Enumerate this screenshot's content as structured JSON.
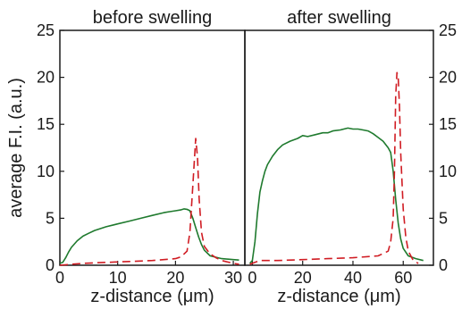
{
  "chart_data": [
    {
      "type": "line",
      "title": "before swelling",
      "xlabel": "z-distance (μm)",
      "ylabel": "average F.I. (a.u.)",
      "xlim": [
        0,
        32
      ],
      "ylim": [
        0,
        25
      ],
      "xticks": [
        0,
        10,
        20,
        30
      ],
      "yticks": [
        0,
        5,
        10,
        15,
        20,
        25
      ],
      "y_axis_side": "left",
      "series": [
        {
          "style": "solid",
          "color": "#1f7a2e",
          "x": [
            0,
            0.5,
            1,
            1.5,
            2,
            3,
            4,
            5,
            6,
            8,
            10,
            12,
            14,
            16,
            18,
            19,
            20,
            21,
            21.5,
            22,
            22.5,
            23,
            23.5,
            24,
            24.5,
            25,
            26,
            28,
            30,
            31
          ],
          "y": [
            0.2,
            0.3,
            0.8,
            1.4,
            1.9,
            2.6,
            3.1,
            3.4,
            3.7,
            4.1,
            4.4,
            4.7,
            5.0,
            5.3,
            5.6,
            5.7,
            5.8,
            5.9,
            6.0,
            5.95,
            5.8,
            5.0,
            4.0,
            3.0,
            2.2,
            1.6,
            1.0,
            0.7,
            0.6,
            0.55
          ]
        },
        {
          "style": "dashed",
          "color": "#d01c23",
          "x": [
            0,
            2,
            4,
            8,
            12,
            16,
            20,
            21,
            22,
            22.5,
            23,
            23.5,
            23.8,
            24.1,
            24.5,
            25,
            26,
            27,
            28,
            30,
            31
          ],
          "y": [
            0.0,
            0.1,
            0.2,
            0.3,
            0.4,
            0.5,
            0.7,
            0.9,
            1.5,
            3.5,
            8.5,
            13.5,
            11.5,
            7.0,
            3.5,
            2.0,
            1.2,
            0.8,
            0.5,
            0.2,
            0.1
          ]
        }
      ]
    },
    {
      "type": "line",
      "title": "after swelling",
      "xlabel": "z-distance (μm)",
      "ylabel": "",
      "xlim": [
        -3,
        72
      ],
      "ylim": [
        0,
        25
      ],
      "xticks": [
        0,
        20,
        40,
        60
      ],
      "yticks": [
        0,
        5,
        10,
        15,
        20,
        25
      ],
      "y_axis_side": "right",
      "series": [
        {
          "style": "solid",
          "color": "#1f7a2e",
          "x": [
            -1,
            0,
            1,
            2,
            3,
            4,
            5,
            6,
            8,
            10,
            12,
            15,
            18,
            20,
            22,
            25,
            28,
            30,
            32,
            35,
            38,
            40,
            42,
            44,
            46,
            48,
            50,
            52,
            54,
            55,
            56,
            57,
            58,
            59,
            60,
            62,
            65,
            68
          ],
          "y": [
            0.2,
            0.5,
            2.5,
            5.5,
            7.8,
            9.0,
            10.0,
            10.7,
            11.6,
            12.3,
            12.8,
            13.2,
            13.5,
            13.8,
            13.7,
            13.9,
            14.1,
            14.1,
            14.3,
            14.4,
            14.6,
            14.5,
            14.5,
            14.4,
            14.3,
            14.0,
            13.6,
            13.2,
            12.5,
            12.0,
            10.0,
            7.0,
            4.5,
            2.8,
            1.8,
            1.0,
            0.7,
            0.5
          ]
        },
        {
          "style": "dashed",
          "color": "#d01c23",
          "x": [
            -1,
            1,
            3,
            5,
            10,
            20,
            30,
            40,
            50,
            54,
            55,
            56,
            56.5,
            57,
            57.5,
            58,
            58.5,
            59,
            60,
            61,
            62,
            64,
            66
          ],
          "y": [
            0.1,
            0.3,
            0.5,
            0.5,
            0.5,
            0.6,
            0.7,
            0.8,
            1.0,
            1.5,
            2.5,
            5.0,
            10.0,
            18.0,
            20.5,
            20.0,
            17.0,
            12.0,
            6.0,
            3.0,
            1.5,
            0.5,
            0.2
          ]
        }
      ]
    }
  ]
}
